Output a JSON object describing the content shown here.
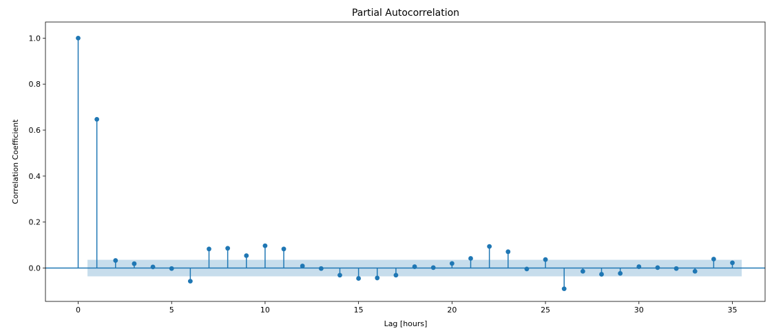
{
  "chart_data": {
    "type": "stem",
    "title": "Partial Autocorrelation",
    "xlabel": "Lag [hours]",
    "ylabel": "Correlation Coefficient",
    "xlim": [
      -1.75,
      36.75
    ],
    "ylim": [
      -0.145,
      1.07
    ],
    "xticks": [
      0,
      5,
      10,
      15,
      20,
      25,
      30,
      35
    ],
    "xtick_labels": [
      "0",
      "5",
      "10",
      "15",
      "20",
      "25",
      "30",
      "35"
    ],
    "yticks": [
      0.0,
      0.2,
      0.4,
      0.6,
      0.8,
      1.0
    ],
    "ytick_labels": [
      "0.0",
      "0.2",
      "0.4",
      "0.6",
      "0.8",
      "1.0"
    ],
    "grid": false,
    "colors": {
      "series": "#1f77b4",
      "confidence_band": "#1f77b4",
      "confidence_alpha": 0.25
    },
    "confidence_interval": {
      "x_start": 0.5,
      "x_end": 35.5,
      "lower": -0.036,
      "upper": 0.036
    },
    "x": [
      0,
      1,
      2,
      3,
      4,
      5,
      6,
      7,
      8,
      9,
      10,
      11,
      12,
      13,
      14,
      15,
      16,
      17,
      18,
      19,
      20,
      21,
      22,
      23,
      24,
      25,
      26,
      27,
      28,
      29,
      30,
      31,
      32,
      33,
      34,
      35
    ],
    "values": [
      1.0,
      0.647,
      0.033,
      0.019,
      0.005,
      -0.002,
      -0.057,
      0.083,
      0.086,
      0.054,
      0.097,
      0.083,
      0.009,
      -0.002,
      -0.031,
      -0.045,
      -0.043,
      -0.031,
      0.006,
      0.002,
      0.02,
      0.042,
      0.094,
      0.071,
      -0.004,
      0.037,
      -0.09,
      -0.014,
      -0.027,
      -0.023,
      0.006,
      0.002,
      -0.002,
      -0.014,
      0.039,
      0.023
    ]
  }
}
